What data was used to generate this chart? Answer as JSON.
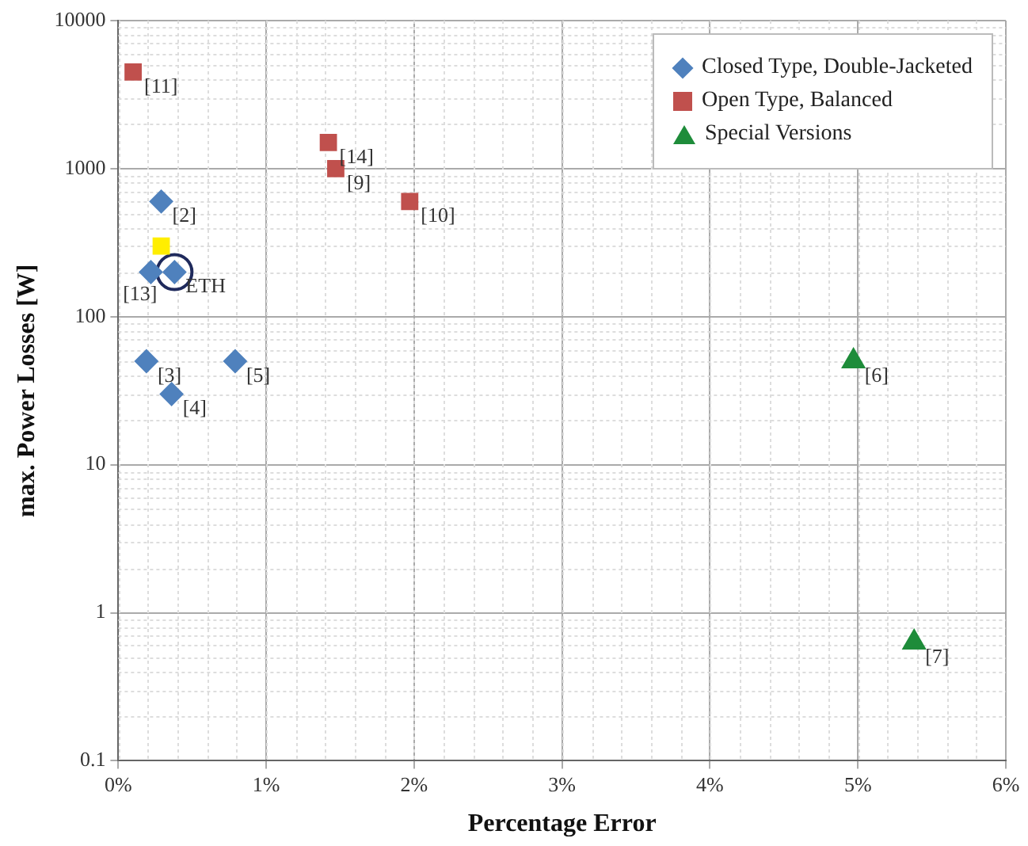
{
  "chart_data": {
    "type": "scatter",
    "xlabel": "Percentage Error",
    "ylabel": "max. Power Losses [W]",
    "xlim": [
      0,
      6
    ],
    "xticks": [
      {
        "value": 0,
        "label": "0%"
      },
      {
        "value": 1,
        "label": "1%"
      },
      {
        "value": 2,
        "label": "2%"
      },
      {
        "value": 3,
        "label": "3%"
      },
      {
        "value": 4,
        "label": "4%"
      },
      {
        "value": 5,
        "label": "5%"
      },
      {
        "value": 6,
        "label": "6%"
      }
    ],
    "ylim": [
      0.1,
      10000
    ],
    "yticks": [
      0.1,
      1,
      10,
      100,
      1000,
      10000
    ],
    "log": "y",
    "grid": true,
    "legend": "top right",
    "series": [
      {
        "name": "Closed Type, Double-Jacketed",
        "color": "#4f81bd",
        "marker": "diamond",
        "x": [
          0.29,
          0.22,
          0.38,
          0.19,
          0.79,
          0.36
        ],
        "values": [
          600,
          200,
          200,
          50,
          50,
          30
        ]
      },
      {
        "name": "Open Type, Balanced",
        "color": "#c0504d",
        "marker": "square",
        "x": [
          0.1,
          1.42,
          1.47,
          1.97
        ],
        "values": [
          4500,
          1500,
          1000,
          600
        ]
      },
      {
        "name": "Special Versions",
        "color": "#1e8c3a",
        "marker": "triangle",
        "x": [
          4.97,
          5.38
        ],
        "values": [
          50,
          0.63
        ]
      },
      {
        "color": "#ffee00",
        "marker": "square",
        "x": [
          0.29
        ],
        "values": [
          300
        ]
      },
      {
        "color": "#1f2a5c",
        "marker": "circle",
        "x": [
          0.38
        ],
        "values": [
          200
        ]
      }
    ],
    "annotations": [
      {
        "text": "[11]",
        "x": 0.1,
        "y": 4500
      },
      {
        "text": "[14]",
        "x": 1.42,
        "y": 1500
      },
      {
        "text": "[9]",
        "x": 1.47,
        "y": 1000
      },
      {
        "text": "[10]",
        "x": 1.97,
        "y": 600
      },
      {
        "text": "[2]",
        "x": 0.29,
        "y": 600
      },
      {
        "text": "[13]",
        "x": 0.22,
        "y": 200
      },
      {
        "text": "ETH",
        "x": 0.38,
        "y": 200
      },
      {
        "text": "[3]",
        "x": 0.19,
        "y": 50
      },
      {
        "text": "[5]",
        "x": 0.79,
        "y": 50
      },
      {
        "text": "[4]",
        "x": 0.36,
        "y": 30
      },
      {
        "text": "[6]",
        "x": 4.97,
        "y": 50
      },
      {
        "text": "[7]",
        "x": 5.38,
        "y": 0.63
      }
    ]
  }
}
